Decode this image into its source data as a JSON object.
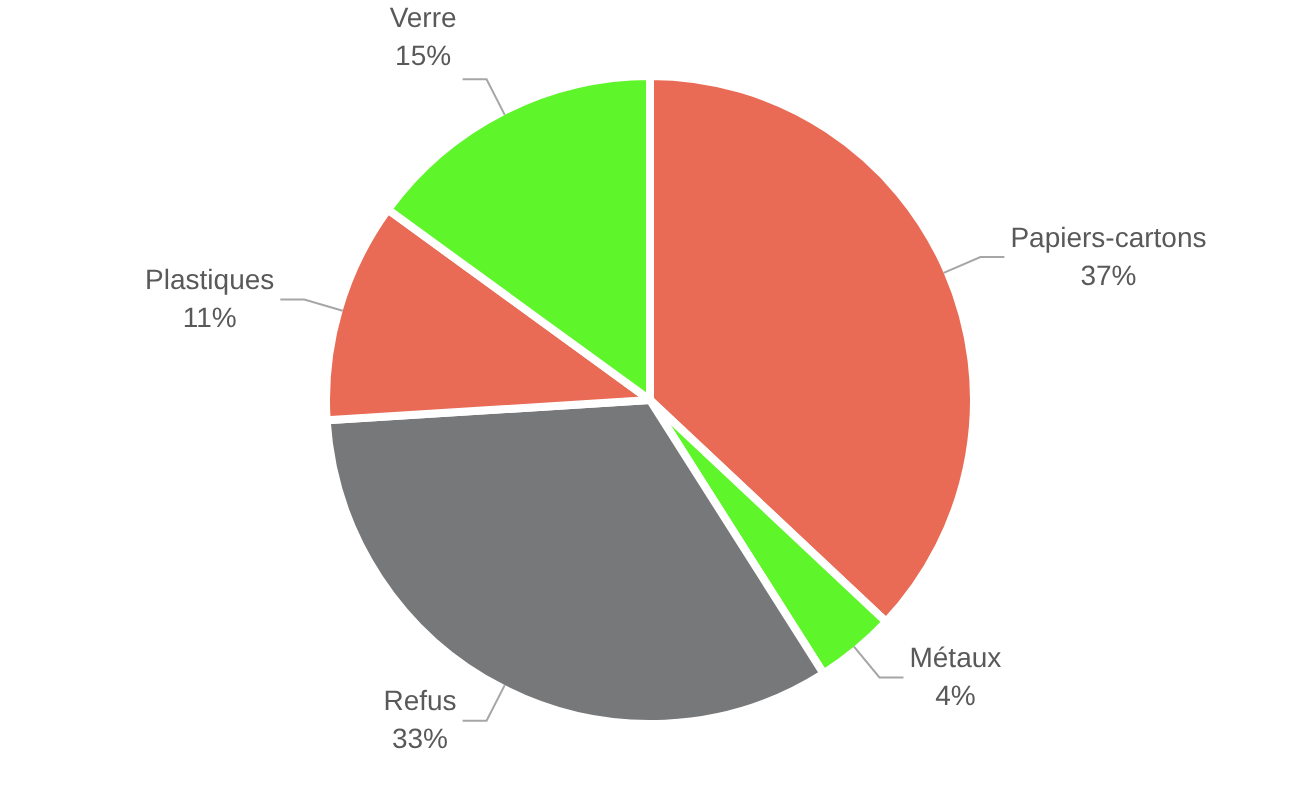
{
  "chart_data": {
    "type": "pie",
    "categories": [
      "Papiers-cartons",
      "Métaux",
      "Refus",
      "Plastiques",
      "Verre"
    ],
    "values": [
      37,
      4,
      33,
      11,
      15
    ],
    "value_labels": [
      "37%",
      "4%",
      "33%",
      "11%",
      "15%"
    ],
    "colors": [
      "#e96a55",
      "#5ef52a",
      "#77787a",
      "#e96a55",
      "#5ef52a"
    ],
    "legend": false
  }
}
